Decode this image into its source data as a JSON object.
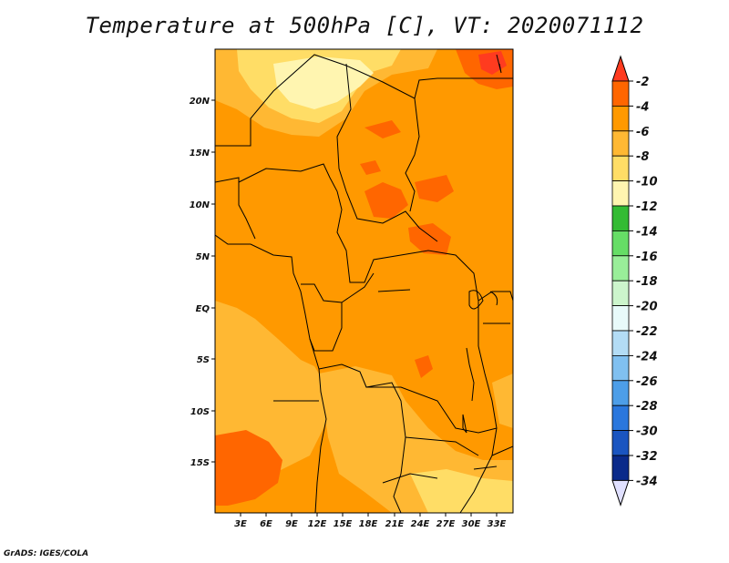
{
  "title": "Temperature at 500hPa [C], VT: 2020071112",
  "credit": "GrADS: IGES/COLA",
  "map": {
    "lat_labels": [
      "20N",
      "15N",
      "10N",
      "5N",
      "EQ",
      "5S",
      "10S",
      "15S"
    ],
    "lon_labels": [
      "3E",
      "6E",
      "9E",
      "12E",
      "15E",
      "18E",
      "21E",
      "24E",
      "27E",
      "30E",
      "33E"
    ]
  },
  "colorbar": {
    "labels": [
      "-2",
      "-4",
      "-6",
      "-8",
      "-10",
      "-12",
      "-14",
      "-16",
      "-18",
      "-20",
      "-22",
      "-24",
      "-26",
      "-28",
      "-30",
      "-32",
      "-34"
    ],
    "colors": [
      "#ff3b1f",
      "#ff6600",
      "#ff9900",
      "#ffb833",
      "#ffdd66",
      "#fff5b0",
      "#33bb33",
      "#66dd66",
      "#99ee99",
      "#ccf5cc",
      "#e8fafa",
      "#b3dcf5",
      "#80c0f0",
      "#4d9ee8",
      "#2a77dd",
      "#1a55c0",
      "#0a2a8a",
      "#000066",
      "#e0e0ff"
    ]
  }
}
